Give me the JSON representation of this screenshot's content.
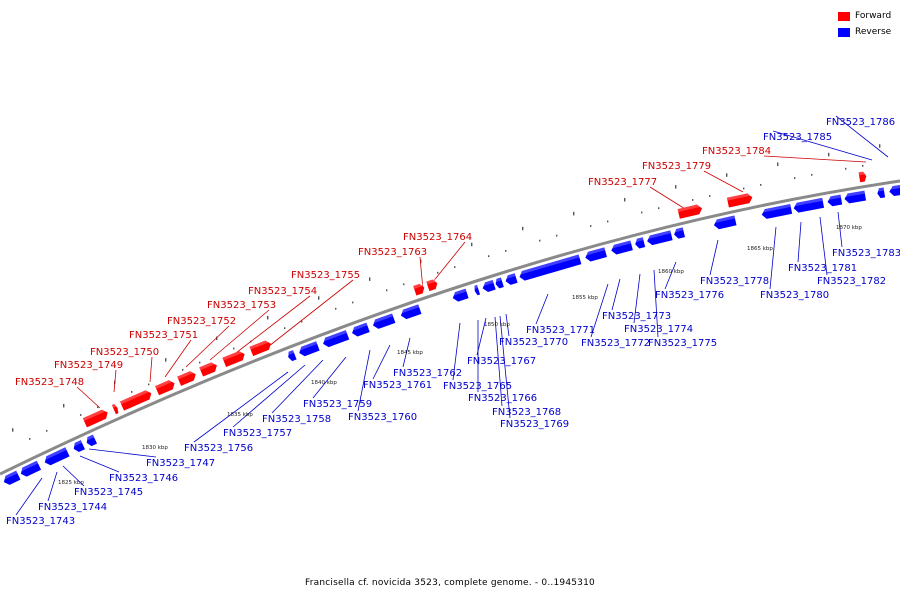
{
  "colors": {
    "forward": "#ff0000",
    "reverse": "#0000ff",
    "forward_text": "#cc0000",
    "reverse_text": "#0000cc",
    "backbone": "#8a8a8a"
  },
  "legend": {
    "forward_label": "Forward",
    "reverse_label": "Reverse"
  },
  "footer": {
    "title": "Francisella cf. novicida 3523, complete genome. - 0..1945310"
  },
  "scale_labels": [
    "1825 kbp",
    "1830 kbp",
    "1835 kbp",
    "1840 kbp",
    "1845 kbp",
    "1850 kbp",
    "1855 kbp",
    "1860 kbp",
    "1865 kbp",
    "1870 kbp"
  ],
  "forward_genes": [
    "FN3523_1748",
    "FN3523_1749",
    "FN3523_1750",
    "FN3523_1751",
    "FN3523_1752",
    "FN3523_1753",
    "FN3523_1754",
    "FN3523_1755",
    "FN3523_1763",
    "FN3523_1764",
    "FN3523_1777",
    "FN3523_1779",
    "FN3523_1784"
  ],
  "reverse_genes": [
    "FN3523_1743",
    "FN3523_1744",
    "FN3523_1745",
    "FN3523_1746",
    "FN3523_1747",
    "FN3523_1756",
    "FN3523_1757",
    "FN3523_1758",
    "FN3523_1759",
    "FN3523_1760",
    "FN3523_1761",
    "FN3523_1762",
    "FN3523_1765",
    "FN3523_1766",
    "FN3523_1767",
    "FN3523_1768",
    "FN3523_1769",
    "FN3523_1770",
    "FN3523_1771",
    "FN3523_1772",
    "FN3523_1773",
    "FN3523_1774",
    "FN3523_1775",
    "FN3523_1776",
    "FN3523_1778",
    "FN3523_1780",
    "FN3523_1781",
    "FN3523_1782",
    "FN3523_1783",
    "FN3523_1785",
    "FN3523_1786"
  ]
}
